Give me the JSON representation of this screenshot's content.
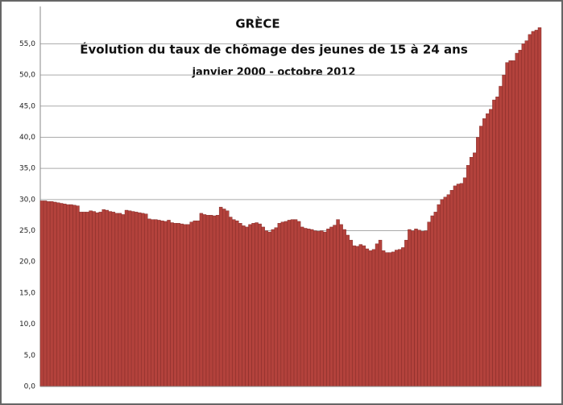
{
  "chart_data": {
    "type": "bar",
    "title": "GRÈCE",
    "subtitle": "Évolution du taux de chômage des jeunes de 15 à 24 ans",
    "period": "janvier 2000 - octobre 2012",
    "color": "#b3423c",
    "grid": true,
    "ylim": [
      0,
      61
    ],
    "yticks": [
      {
        "value": 0,
        "label": "0,0"
      },
      {
        "value": 5,
        "label": "5,0"
      },
      {
        "value": 10,
        "label": "10,0"
      },
      {
        "value": 15,
        "label": "15,0"
      },
      {
        "value": 20,
        "label": "20,0"
      },
      {
        "value": 25,
        "label": "25,0"
      },
      {
        "value": 30,
        "label": "30,0"
      },
      {
        "value": 35,
        "label": "35,0"
      },
      {
        "value": 40,
        "label": "40,0"
      },
      {
        "value": 45,
        "label": "45,0"
      },
      {
        "value": 50,
        "label": "50,0"
      },
      {
        "value": 55,
        "label": "55,0"
      }
    ],
    "values": [
      29.8,
      29.8,
      29.7,
      29.7,
      29.6,
      29.5,
      29.4,
      29.3,
      29.2,
      29.2,
      29.1,
      29.0,
      28.0,
      28.0,
      28.0,
      28.2,
      28.1,
      27.9,
      28.0,
      28.4,
      28.3,
      28.1,
      28.0,
      27.8,
      27.8,
      27.6,
      28.3,
      28.2,
      28.1,
      28.0,
      27.9,
      27.8,
      27.7,
      26.9,
      26.8,
      26.8,
      26.7,
      26.6,
      26.5,
      26.7,
      26.3,
      26.2,
      26.2,
      26.1,
      26.0,
      26.0,
      26.4,
      26.6,
      26.6,
      27.8,
      27.6,
      27.5,
      27.5,
      27.4,
      27.5,
      28.8,
      28.5,
      28.2,
      27.2,
      26.8,
      26.6,
      26.2,
      25.8,
      25.6,
      26.0,
      26.2,
      26.3,
      26.1,
      25.6,
      25.0,
      24.8,
      25.2,
      25.5,
      26.2,
      26.4,
      26.5,
      26.7,
      26.8,
      26.8,
      26.5,
      25.6,
      25.4,
      25.3,
      25.2,
      25.0,
      24.9,
      25.0,
      24.8,
      25.3,
      25.6,
      25.9,
      26.8,
      26.0,
      25.2,
      24.3,
      23.5,
      22.6,
      22.5,
      22.8,
      22.6,
      22.1,
      21.8,
      22.0,
      22.9,
      23.5,
      21.8,
      21.5,
      21.5,
      21.6,
      21.9,
      22.0,
      22.3,
      23.5,
      25.2,
      25.0,
      25.3,
      25.1,
      24.9,
      25.0,
      26.4,
      27.4,
      28.0,
      29.2,
      30.0,
      30.4,
      30.8,
      31.5,
      32.2,
      32.5,
      32.6,
      33.5,
      35.5,
      36.8,
      37.5,
      40.0,
      41.8,
      43.0,
      43.8,
      44.5,
      46.0,
      46.5,
      48.2,
      50.0,
      52.0,
      52.3,
      52.3,
      53.5,
      54.0,
      55.0,
      55.5,
      56.5,
      57.0,
      57.2,
      57.6
    ]
  }
}
